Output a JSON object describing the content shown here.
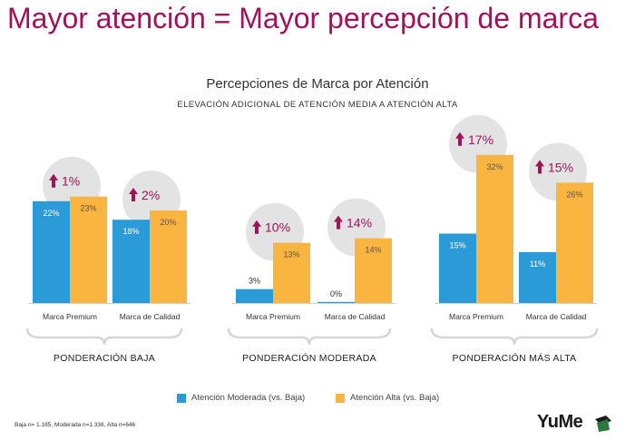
{
  "slide": {
    "title": "Mayor atención = Mayor percepción de marca",
    "footnote": "Baja n= 1.185, Moderada n=1.338, Alta n=646",
    "logo": "YuMe"
  },
  "colors": {
    "title": "#a0135a",
    "moderada": "#2a9bd7",
    "alta": "#f9b540",
    "circle": "#e3e3e3",
    "arrow": "#a0135a"
  },
  "chart_data": {
    "type": "bar",
    "title": "Percepciones de Marca por Atención",
    "subtitle": "ELEVACIÓN ADICIONAL DE ATENCIÓN MEDIA A ATENCIÓN ALTA",
    "series_names": [
      "Atención Moderada (vs. Baja)",
      "Atención Alta (vs. Baja)"
    ],
    "legend_position": "bottom",
    "ylim": [
      0,
      35
    ],
    "groups": [
      {
        "label": "PONDERACIÓN BAJA",
        "categories": [
          "Marca Premium",
          "Marca de Calidad"
        ],
        "moderada": [
          22,
          18
        ],
        "alta": [
          23,
          20
        ],
        "moderada_labels": [
          "22%",
          "18%"
        ],
        "alta_labels": [
          "23%",
          "20%"
        ],
        "uplift": [
          "1%",
          "2%"
        ]
      },
      {
        "label": "PONDERACIÓN MODERADA",
        "categories": [
          "Marca Premium",
          "Marca de Calidad"
        ],
        "moderada": [
          3,
          0
        ],
        "alta": [
          13,
          14
        ],
        "moderada_labels": [
          "3%",
          "0%"
        ],
        "alta_labels": [
          "13%",
          "14%"
        ],
        "uplift": [
          "10%",
          "14%"
        ]
      },
      {
        "label": "PONDERACIÓN  MÁS ALTA",
        "categories": [
          "Marca Premium",
          "Marca de Calidad"
        ],
        "moderada": [
          15,
          11
        ],
        "alta": [
          32,
          26
        ],
        "moderada_labels": [
          "15%",
          "11%"
        ],
        "alta_labels": [
          "32%",
          "26%"
        ],
        "uplift": [
          "17%",
          "15%"
        ]
      }
    ]
  }
}
